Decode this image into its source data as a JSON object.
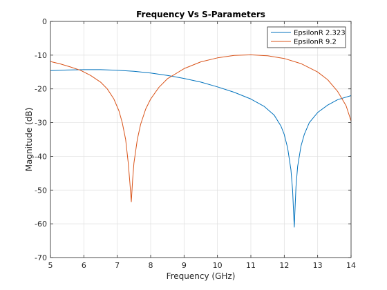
{
  "chart_data": {
    "type": "line",
    "title": "Frequency Vs S-Parameters",
    "xlabel": "Frequency (GHz)",
    "ylabel": "Magnitude (dB)",
    "xlim": [
      5,
      14
    ],
    "ylim": [
      -70,
      0
    ],
    "xticks": [
      5,
      6,
      7,
      8,
      9,
      10,
      11,
      12,
      13,
      14
    ],
    "yticks": [
      0,
      -10,
      -20,
      -30,
      -40,
      -50,
      -60,
      -70
    ],
    "grid": true,
    "legend_position": "top-right",
    "series": [
      {
        "name": "EpsilonR 2.323",
        "color": "#0072BD",
        "points": [
          [
            5.0,
            -14.6
          ],
          [
            5.5,
            -14.4
          ],
          [
            6.0,
            -14.3
          ],
          [
            6.5,
            -14.3
          ],
          [
            7.0,
            -14.5
          ],
          [
            7.5,
            -14.8
          ],
          [
            8.0,
            -15.3
          ],
          [
            8.5,
            -16.0
          ],
          [
            9.0,
            -16.9
          ],
          [
            9.5,
            -18.0
          ],
          [
            10.0,
            -19.4
          ],
          [
            10.5,
            -21.0
          ],
          [
            11.0,
            -23.0
          ],
          [
            11.4,
            -25.2
          ],
          [
            11.7,
            -27.8
          ],
          [
            11.9,
            -31.0
          ],
          [
            12.0,
            -33.5
          ],
          [
            12.1,
            -37.5
          ],
          [
            12.2,
            -44.0
          ],
          [
            12.25,
            -50.0
          ],
          [
            12.3,
            -61.0
          ],
          [
            12.35,
            -49.0
          ],
          [
            12.4,
            -43.0
          ],
          [
            12.5,
            -37.0
          ],
          [
            12.6,
            -33.5
          ],
          [
            12.75,
            -30.0
          ],
          [
            13.0,
            -27.0
          ],
          [
            13.3,
            -24.8
          ],
          [
            13.6,
            -23.2
          ],
          [
            14.0,
            -22.0
          ]
        ]
      },
      {
        "name": "EpsilonR 9.2",
        "color": "#D95319",
        "points": [
          [
            5.0,
            -11.9
          ],
          [
            5.3,
            -12.6
          ],
          [
            5.6,
            -13.5
          ],
          [
            5.9,
            -14.5
          ],
          [
            6.2,
            -16.0
          ],
          [
            6.5,
            -18.0
          ],
          [
            6.7,
            -20.0
          ],
          [
            6.9,
            -23.0
          ],
          [
            7.05,
            -26.5
          ],
          [
            7.15,
            -30.0
          ],
          [
            7.25,
            -35.0
          ],
          [
            7.33,
            -42.0
          ],
          [
            7.38,
            -48.0
          ],
          [
            7.42,
            -53.5
          ],
          [
            7.46,
            -47.0
          ],
          [
            7.5,
            -42.0
          ],
          [
            7.6,
            -35.0
          ],
          [
            7.7,
            -30.5
          ],
          [
            7.85,
            -26.0
          ],
          [
            8.0,
            -23.0
          ],
          [
            8.25,
            -19.5
          ],
          [
            8.5,
            -17.0
          ],
          [
            9.0,
            -14.0
          ],
          [
            9.5,
            -12.0
          ],
          [
            10.0,
            -10.8
          ],
          [
            10.5,
            -10.1
          ],
          [
            11.0,
            -9.9
          ],
          [
            11.5,
            -10.2
          ],
          [
            12.0,
            -11.0
          ],
          [
            12.5,
            -12.5
          ],
          [
            13.0,
            -15.0
          ],
          [
            13.3,
            -17.3
          ],
          [
            13.6,
            -20.8
          ],
          [
            13.85,
            -25.0
          ],
          [
            14.0,
            -29.5
          ]
        ]
      }
    ]
  }
}
